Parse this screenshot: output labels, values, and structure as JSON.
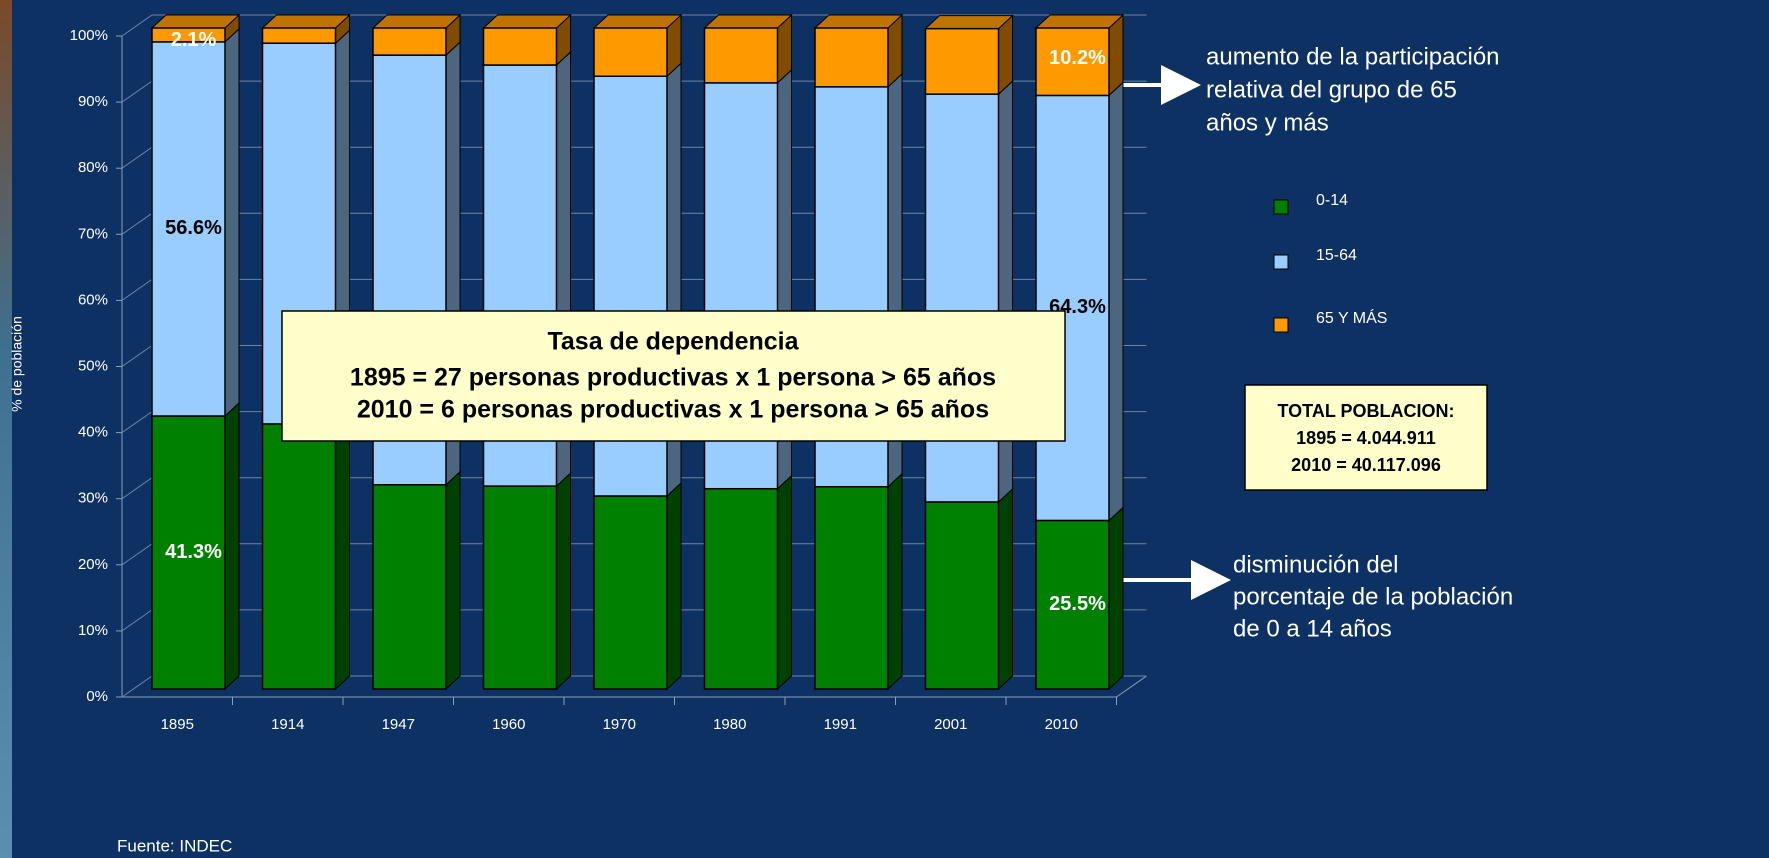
{
  "chart_data": {
    "type": "stacked_bar",
    "y_label": "% de población",
    "source": "Fuente: INDEC",
    "categories": [
      "1895",
      "1914",
      "1947",
      "1960",
      "1970",
      "1980",
      "1991",
      "2001",
      "2010"
    ],
    "series": [
      {
        "name": "0-14",
        "color": "#008000",
        "values": [
          41.3,
          40.1,
          30.9,
          30.7,
          29.2,
          30.3,
          30.6,
          28.3,
          25.5
        ],
        "value_labels": [
          "41.3%",
          null,
          null,
          null,
          null,
          null,
          null,
          null,
          "25.5%"
        ]
      },
      {
        "name": "15-64",
        "color": "#99ccff",
        "values": [
          56.6,
          57.6,
          65.0,
          63.7,
          63.5,
          61.4,
          60.5,
          61.7,
          64.3
        ],
        "value_labels": [
          "56.6%",
          null,
          null,
          null,
          null,
          null,
          null,
          null,
          "64.3%"
        ]
      },
      {
        "name": "65 Y MÁS",
        "color": "#ff9900",
        "values": [
          2.1,
          2.3,
          4.1,
          5.6,
          7.3,
          8.3,
          8.9,
          9.9,
          10.2
        ],
        "value_labels": [
          "2.1%",
          null,
          null,
          null,
          null,
          null,
          null,
          null,
          "10.2%"
        ]
      }
    ],
    "ylim": [
      0,
      100
    ],
    "yticks": [
      {
        "value": 0,
        "label": "0%"
      },
      {
        "value": 10,
        "label": "10%"
      },
      {
        "value": 20,
        "label": "20%"
      },
      {
        "value": 30,
        "label": "30%"
      },
      {
        "value": 40,
        "label": "40%"
      },
      {
        "value": 50,
        "label": "50%"
      },
      {
        "value": 60,
        "label": "60%"
      },
      {
        "value": 70,
        "label": "70%"
      },
      {
        "value": 80,
        "label": "80%"
      },
      {
        "value": 90,
        "label": "90%"
      },
      {
        "value": 100,
        "label": "100%"
      }
    ],
    "grid": true,
    "legend": "right",
    "annotations": {
      "increase": [
        "aumento de la participación",
        "relativa del grupo de 65",
        "años y más"
      ],
      "decrease": [
        "disminución del",
        "porcentaje de la población",
        "de 0 a 14 años"
      ]
    },
    "dependency_box": {
      "title": "Tasa de dependencia",
      "lines": [
        "1895 = 27 personas productivas x 1 persona > 65 años",
        "2010 =   6 personas productivas x 1 persona > 65 años"
      ]
    },
    "total_box": {
      "lines": [
        "TOTAL POBLACION:",
        "1895 =   4.044.911",
        "2010 = 40.117.096"
      ]
    }
  }
}
